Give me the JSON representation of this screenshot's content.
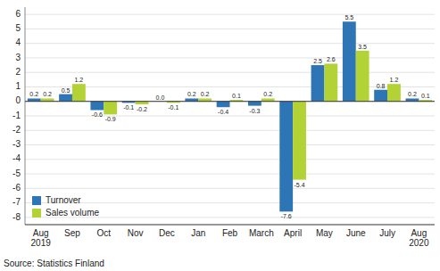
{
  "chart_data": {
    "type": "bar",
    "categories": [
      "Aug\n2019",
      "Sep",
      "Oct",
      "Nov",
      "Dec",
      "Jan",
      "Feb",
      "March",
      "April",
      "May",
      "June",
      "July",
      "Aug\n2020"
    ],
    "series": [
      {
        "name": "Turnover",
        "color": "#2e75b6",
        "values": [
          0.2,
          0.5,
          -0.6,
          -0.1,
          0.0,
          0.2,
          -0.4,
          -0.3,
          -7.6,
          2.5,
          5.5,
          0.8,
          0.2
        ],
        "value_labels": [
          "0.2",
          "0.5",
          "-0.6",
          "-0.1",
          "0.0",
          "0.2",
          "-0.4",
          "-0.3",
          "-7.6",
          "2.5",
          "5.5",
          "0.8",
          "0.2"
        ]
      },
      {
        "name": "Sales volume",
        "color": "#b2d235",
        "values": [
          0.2,
          1.2,
          -0.9,
          -0.2,
          -0.1,
          0.2,
          0.1,
          0.2,
          -5.4,
          2.6,
          3.5,
          1.2,
          0.1
        ],
        "value_labels": [
          "0.2",
          "1.2",
          "-0.9",
          "-0.2",
          "-0.1",
          "0.2",
          "0.1",
          "0.2",
          "-5.4",
          "2.6",
          "3.5",
          "1.2",
          "0.1"
        ]
      }
    ],
    "ylim": [
      -8.5,
      6.5
    ],
    "yticks": [
      -8,
      -7,
      -6,
      -5,
      -4,
      -3,
      -2,
      -1,
      0,
      1,
      2,
      3,
      4,
      5,
      6
    ],
    "grid": true,
    "legend": "lower left",
    "data_labels": true,
    "annotations": [
      "Source: Statistics Finland"
    ]
  }
}
